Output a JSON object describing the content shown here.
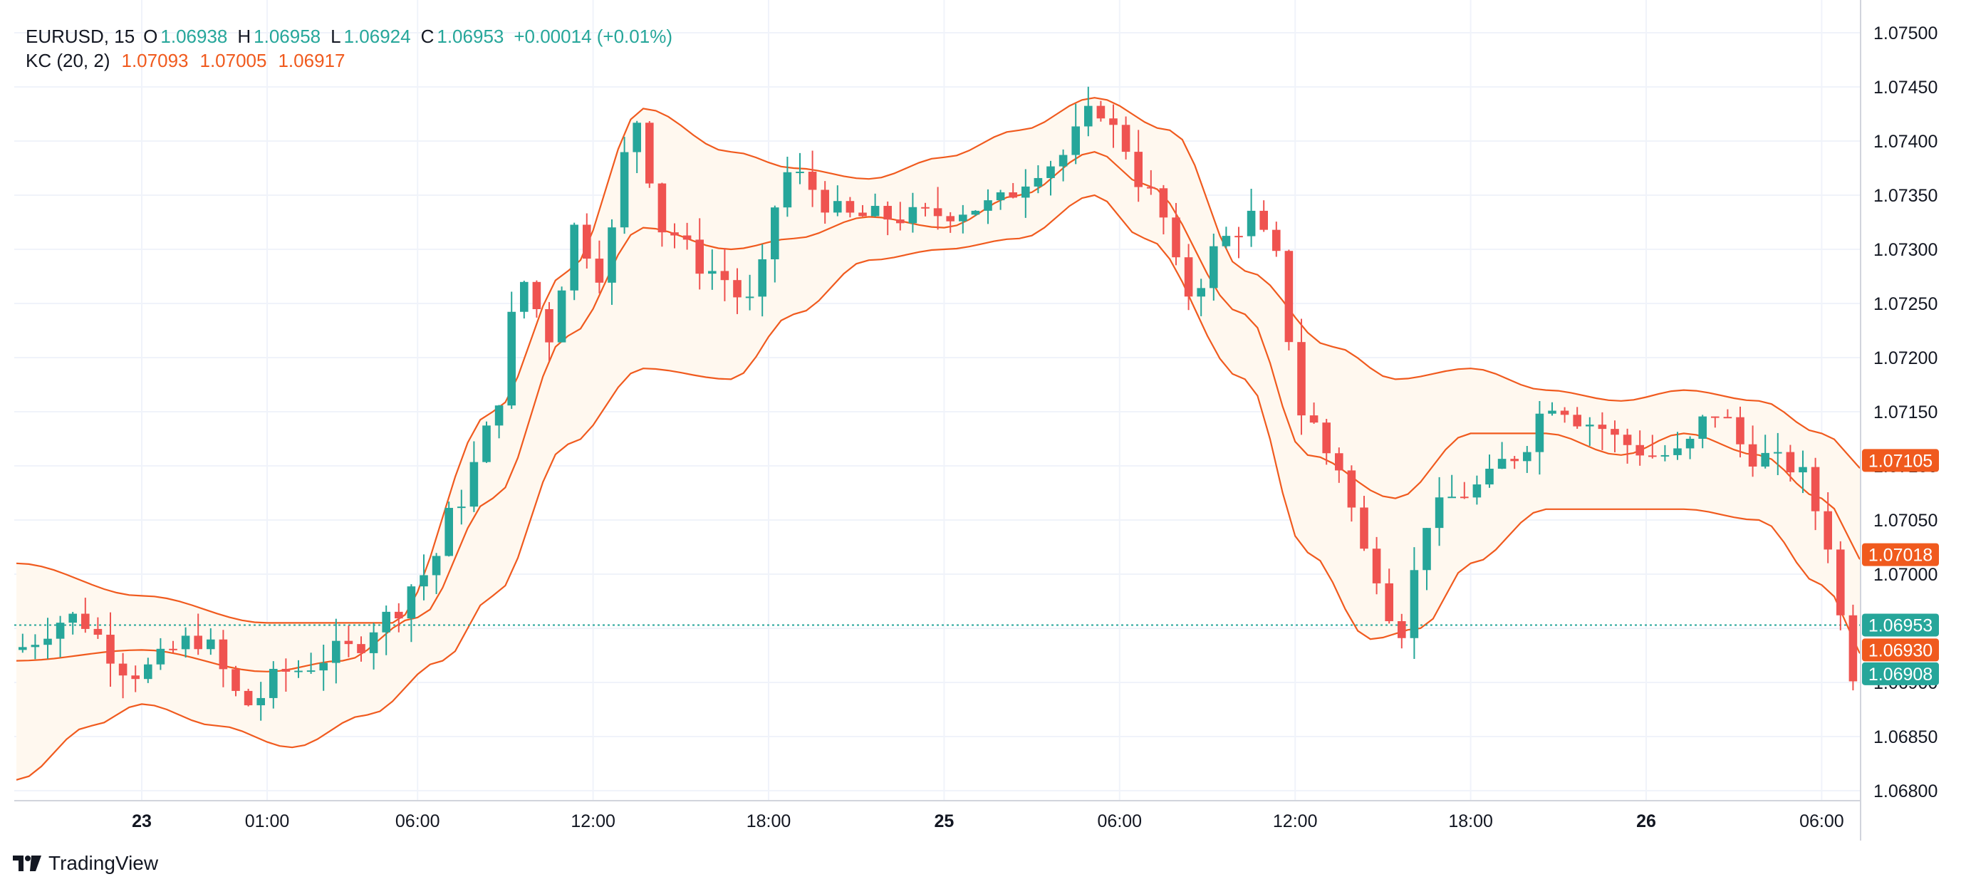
{
  "legend": {
    "symbol": "EURUSD, 15",
    "open_label": "O",
    "open": "1.06938",
    "high_label": "H",
    "high": "1.06958",
    "low_label": "L",
    "low": "1.06924",
    "close_label": "C",
    "close": "1.06953",
    "change": "+0.00014 (+0.01%)",
    "indicator": "KC (20, 2)",
    "kc_upper": "1.07093",
    "kc_middle": "1.07005",
    "kc_lower": "1.06917"
  },
  "logo": {
    "text": "TradingView",
    "icon": "tradingview-logo-icon"
  },
  "colors": {
    "up": "#26a69a",
    "down": "#ef5350",
    "kc": "#f05a1e",
    "band_fill": "#fff8ef",
    "grid": "#f0f3fa",
    "text": "#131722"
  },
  "chart_data": {
    "type": "candlestick",
    "symbol": "EURUSD",
    "timeframe": "15",
    "ylim": [
      1.0678,
      1.0752
    ],
    "y_ticks": [
      "1.07500",
      "1.07450",
      "1.07400",
      "1.07350",
      "1.07300",
      "1.07250",
      "1.07200",
      "1.07150",
      "1.07100",
      "1.07050",
      "1.07000",
      "1.06950",
      "1.06900",
      "1.06850",
      "1.06800"
    ],
    "x_ticks": [
      {
        "label": "23",
        "bar": 10,
        "bold": true
      },
      {
        "label": "01:00",
        "bar": 20,
        "bold": false
      },
      {
        "label": "06:00",
        "bar": 32,
        "bold": false
      },
      {
        "label": "12:00",
        "bar": 46,
        "bold": false
      },
      {
        "label": "18:00",
        "bar": 60,
        "bold": false
      },
      {
        "label": "25",
        "bar": 74,
        "bold": true
      },
      {
        "label": "06:00",
        "bar": 88,
        "bold": false
      },
      {
        "label": "12:00",
        "bar": 102,
        "bold": false
      },
      {
        "label": "18:00",
        "bar": 116,
        "bold": false
      },
      {
        "label": "26",
        "bar": 130,
        "bold": true
      },
      {
        "label": "06:00",
        "bar": 144,
        "bold": false
      }
    ],
    "price_labels": [
      {
        "text": "1.07105",
        "value": 1.07105,
        "color": "#f05a1e"
      },
      {
        "text": "1.07018",
        "value": 1.07018,
        "color": "#f05a1e"
      },
      {
        "text": "1.06953",
        "value": 1.06953,
        "color": "#26a69a"
      },
      {
        "text": "1.06930",
        "value": 1.0693,
        "color": "#f05a1e"
      },
      {
        "text": "1.06908",
        "value": 1.06908,
        "color": "#26a69a"
      }
    ],
    "last_price": 1.06953,
    "bar_count": 148,
    "keltner_pivots": {
      "upper": [
        [
          0,
          1.0701
        ],
        [
          10,
          1.0698
        ],
        [
          20,
          1.06955
        ],
        [
          30,
          1.06955
        ],
        [
          38,
          1.0715
        ],
        [
          44,
          1.0728
        ],
        [
          50,
          1.0743
        ],
        [
          57,
          1.0739
        ],
        [
          62,
          1.07375
        ],
        [
          68,
          1.07365
        ],
        [
          74,
          1.07385
        ],
        [
          80,
          1.0741
        ],
        [
          86,
          1.0744
        ],
        [
          92,
          1.0741
        ],
        [
          98,
          1.0728
        ],
        [
          105,
          1.0721
        ],
        [
          110,
          1.0718
        ],
        [
          116,
          1.0719
        ],
        [
          122,
          1.0717
        ],
        [
          128,
          1.0716
        ],
        [
          133,
          1.0717
        ],
        [
          139,
          1.0716
        ],
        [
          144,
          1.0713
        ],
        [
          148,
          1.07093
        ]
      ],
      "middle": [
        [
          0,
          1.0692
        ],
        [
          10,
          1.0693
        ],
        [
          20,
          1.0691
        ],
        [
          26,
          1.0692
        ],
        [
          32,
          1.0696
        ],
        [
          38,
          1.0707
        ],
        [
          44,
          1.0722
        ],
        [
          50,
          1.0732
        ],
        [
          57,
          1.073
        ],
        [
          62,
          1.0731
        ],
        [
          68,
          1.0733
        ],
        [
          74,
          1.0732
        ],
        [
          80,
          1.0735
        ],
        [
          86,
          1.0739
        ],
        [
          90,
          1.0736
        ],
        [
          98,
          1.0724
        ],
        [
          103,
          1.0711
        ],
        [
          110,
          1.0707
        ],
        [
          116,
          1.0713
        ],
        [
          122,
          1.0713
        ],
        [
          128,
          1.0711
        ],
        [
          133,
          1.0713
        ],
        [
          139,
          1.0711
        ],
        [
          144,
          1.0707
        ],
        [
          148,
          1.07005
        ]
      ],
      "lower": [
        [
          0,
          1.0681
        ],
        [
          6,
          1.0686
        ],
        [
          10,
          1.0688
        ],
        [
          16,
          1.0686
        ],
        [
          22,
          1.0684
        ],
        [
          28,
          1.0687
        ],
        [
          34,
          1.0692
        ],
        [
          38,
          1.0698
        ],
        [
          44,
          1.0712
        ],
        [
          50,
          1.0719
        ],
        [
          57,
          1.0718
        ],
        [
          62,
          1.0724
        ],
        [
          68,
          1.0729
        ],
        [
          74,
          1.073
        ],
        [
          80,
          1.0731
        ],
        [
          86,
          1.0735
        ],
        [
          90,
          1.0731
        ],
        [
          98,
          1.0718
        ],
        [
          103,
          1.0702
        ],
        [
          108,
          1.0694
        ],
        [
          112,
          1.0695
        ],
        [
          116,
          1.0701
        ],
        [
          122,
          1.0706
        ],
        [
          128,
          1.0706
        ],
        [
          133,
          1.0706
        ],
        [
          139,
          1.0705
        ],
        [
          144,
          1.0699
        ],
        [
          148,
          1.06917
        ]
      ]
    },
    "close_pivots": [
      [
        0,
        1.0693
      ],
      [
        5,
        1.0696
      ],
      [
        10,
        1.0691
      ],
      [
        15,
        1.0694
      ],
      [
        19,
        1.0688
      ],
      [
        22,
        1.0691
      ],
      [
        27,
        1.0693
      ],
      [
        30,
        1.0696
      ],
      [
        33,
        1.07
      ],
      [
        36,
        1.0707
      ],
      [
        38,
        1.0713
      ],
      [
        41,
        1.0727
      ],
      [
        43,
        1.0722
      ],
      [
        45,
        1.0732
      ],
      [
        47,
        1.0728
      ],
      [
        50,
        1.0742
      ],
      [
        52,
        1.0732
      ],
      [
        56,
        1.0728
      ],
      [
        59,
        1.0725
      ],
      [
        62,
        1.0737
      ],
      [
        67,
        1.0733
      ],
      [
        72,
        1.0733
      ],
      [
        78,
        1.0734
      ],
      [
        83,
        1.0738
      ],
      [
        87,
        1.0743
      ],
      [
        88,
        1.0741
      ],
      [
        91,
        1.0735
      ],
      [
        94,
        1.0726
      ],
      [
        97,
        1.0731
      ],
      [
        99,
        1.0733
      ],
      [
        101,
        1.0729
      ],
      [
        103,
        1.0715
      ],
      [
        106,
        1.071
      ],
      [
        108,
        1.0702
      ],
      [
        111,
        1.0695
      ],
      [
        113,
        1.0705
      ],
      [
        115,
        1.0707
      ],
      [
        117,
        1.0708
      ],
      [
        120,
        1.0711
      ],
      [
        123,
        1.0716
      ],
      [
        126,
        1.0714
      ],
      [
        129,
        1.0712
      ],
      [
        131,
        1.0711
      ],
      [
        133,
        1.0711
      ],
      [
        136,
        1.0715
      ],
      [
        139,
        1.0711
      ],
      [
        142,
        1.071
      ],
      [
        143,
        1.0709
      ],
      [
        145,
        1.0703
      ],
      [
        146,
        1.0696
      ],
      [
        147,
        1.0691
      ],
      [
        148,
        1.06953
      ]
    ]
  }
}
